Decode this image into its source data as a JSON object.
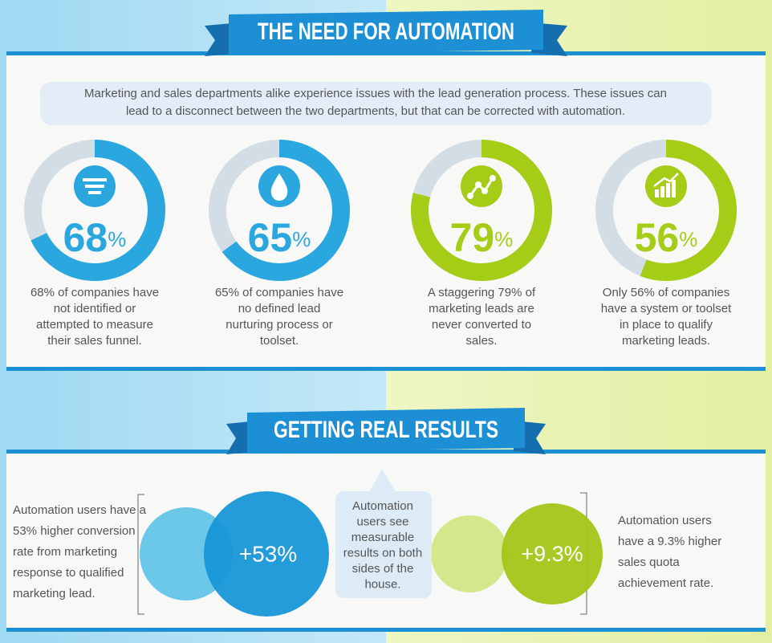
{
  "header": {
    "title": "THE NEED FOR AUTOMATION"
  },
  "intro": [
    "Marketing and sales departments alike experience issues with the lead generation process. These issues can",
    "lead to a disconnect between the two departments, but that can be corrected with automation."
  ],
  "stats": [
    {
      "value": 68,
      "unit": "%",
      "color": "#2aa7df",
      "lines": [
        "68% of companies have",
        "not identified or",
        "attempted to measure",
        "their sales funnel."
      ]
    },
    {
      "value": 65,
      "unit": "%",
      "color": "#2aa7df",
      "lines": [
        "65% of companies have",
        "no defined lead",
        "nurturing process or",
        "toolset."
      ]
    },
    {
      "value": 79,
      "unit": "%",
      "color": "#a5cc16",
      "lines": [
        "A staggering 79% of",
        "marketing leads are",
        "never converted to",
        "sales."
      ]
    },
    {
      "value": 56,
      "unit": "%",
      "color": "#a5cc16",
      "lines": [
        "Only 56% of companies",
        "have a system or toolset",
        "in place to qualify",
        "marketing leads."
      ]
    }
  ],
  "results": {
    "title": "GETTING REAL RESULTS",
    "left_text": [
      "Automation users have a",
      "53% higher conversion",
      "rate from marketing",
      "response to qualified",
      "marketing lead."
    ],
    "left_value": "+53%",
    "middle_text": [
      "Automation",
      "users see",
      "measurable",
      "results on both",
      "sides of the",
      "house."
    ],
    "right_value": "+9.3%",
    "right_text": [
      "Automation users",
      "have a 9.3% higher",
      "sales quota",
      "achievement rate."
    ]
  }
}
